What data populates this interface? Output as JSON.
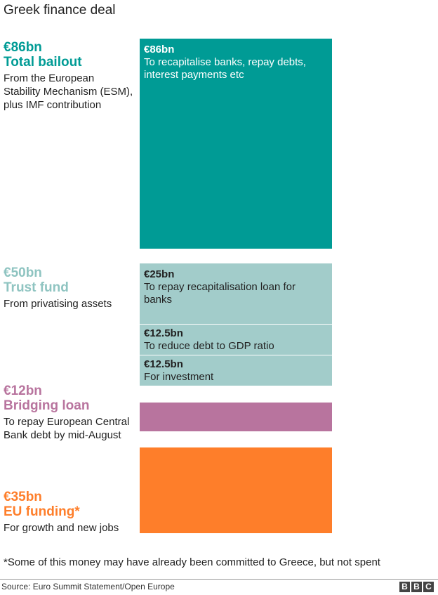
{
  "title": "Greek finance deal",
  "colors": {
    "teal": "#009b95",
    "light_teal": "#a2ccca",
    "pink": "#b8749e",
    "orange": "#fe7e2a"
  },
  "labels": {
    "bailout": {
      "amount": "€86bn",
      "name": "Total bailout",
      "desc": "From the European Stability Mechanism (ESM), plus IMF contribution"
    },
    "trust": {
      "amount": "€50bn",
      "name": "Trust fund",
      "desc": "From privatising assets"
    },
    "bridging": {
      "amount": "€12bn",
      "name": "Bridging loan",
      "desc": "To repay European Central Bank debt by mid-August"
    },
    "eu": {
      "amount": "€35bn",
      "name": "EU funding*",
      "desc": "For growth and new jobs"
    }
  },
  "bars": {
    "bailout": {
      "amount": "€86bn",
      "text": "To recapitalise banks, repay debts, interest payments etc"
    },
    "trust_1": {
      "amount": "€25bn",
      "text": "To repay recapitalisation loan for banks"
    },
    "trust_2": {
      "amount": "€12.5bn",
      "text": "To reduce debt to GDP ratio"
    },
    "trust_3": {
      "amount": "€12.5bn",
      "text": "For investment"
    }
  },
  "footnote": "*Some of this money may have already been committed to Greece, but not spent",
  "source": "Source: Euro Summit Statement/Open Europe",
  "logo": [
    "B",
    "B",
    "C"
  ],
  "chart_data": {
    "type": "bar",
    "title": "Greek finance deal",
    "categories": [
      "Total bailout",
      "Trust fund",
      "Bridging loan",
      "EU funding*"
    ],
    "values": [
      86,
      50,
      12,
      35
    ],
    "unit": "€bn",
    "breakdown": {
      "Total bailout": [
        {
          "label": "To recapitalise banks, repay debts, interest payments etc",
          "value": 86
        }
      ],
      "Trust fund": [
        {
          "label": "To repay recapitalisation loan for banks",
          "value": 25
        },
        {
          "label": "To reduce debt to GDP ratio",
          "value": 12.5
        },
        {
          "label": "For investment",
          "value": 12.5
        }
      ],
      "Bridging loan": [
        {
          "label": "To repay European Central Bank debt by mid-August",
          "value": 12
        }
      ],
      "EU funding*": [
        {
          "label": "For growth and new jobs",
          "value": 35
        }
      ]
    }
  }
}
